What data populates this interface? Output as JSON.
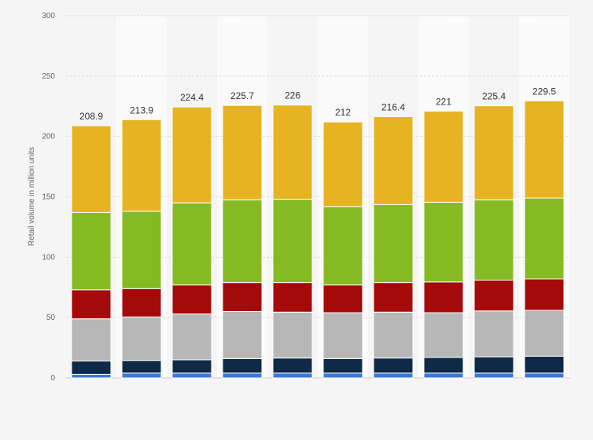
{
  "chart_data": {
    "type": "bar",
    "stacked": true,
    "categories": [
      "",
      "",
      "",
      "",
      "",
      "",
      "",
      "",
      "",
      ""
    ],
    "totals": [
      "208.9",
      "213.9",
      "224.4",
      "225.7",
      "226",
      "212",
      "216.4",
      "221",
      "225.4",
      "229.5"
    ],
    "ylabel": "Retail volume in million units",
    "ylim": [
      0,
      300
    ],
    "yticks": [
      0,
      50,
      100,
      150,
      200,
      250,
      300
    ],
    "grid": true,
    "series": [
      {
        "color": "#3a78d8",
        "values": [
          3,
          4,
          4,
          4,
          4,
          4,
          4,
          4,
          4,
          4
        ]
      },
      {
        "color": "#0e2a47",
        "values": [
          11,
          10.5,
          11,
          12,
          12.5,
          12,
          12.5,
          13,
          13.5,
          14
        ]
      },
      {
        "color": "#b7b7b7",
        "values": [
          35,
          36,
          38,
          39,
          38,
          38,
          38,
          37,
          38,
          38
        ]
      },
      {
        "color": "#a50a0a",
        "values": [
          24,
          23.5,
          24,
          24,
          24.5,
          23,
          24.5,
          25.5,
          25.5,
          26
        ]
      },
      {
        "color": "#86ba22",
        "values": [
          64,
          64,
          68,
          68.5,
          69,
          65,
          64.5,
          66,
          66.5,
          67
        ]
      },
      {
        "color": "#e8b322",
        "values": [
          71.9,
          75.9,
          79.4,
          78.2,
          78,
          70,
          72.9,
          75.5,
          77.9,
          80.5
        ]
      }
    ],
    "band_color": "#fbfbfb"
  }
}
